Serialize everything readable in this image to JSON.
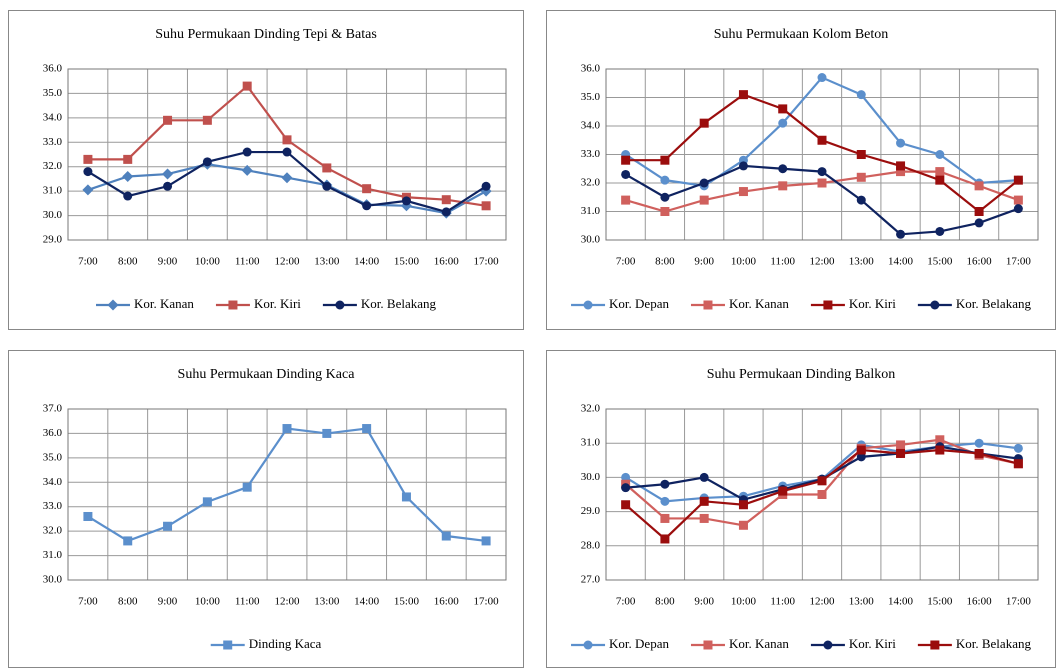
{
  "chart_data": [
    {
      "type": "line",
      "title": "Suhu Permukaan Dinding Tepi & Batas",
      "categories": [
        "7:00",
        "8:00",
        "9:00",
        "10:00",
        "11:00",
        "12:00",
        "13:00",
        "14:00",
        "15:00",
        "16:00",
        "17:00"
      ],
      "ylim": [
        29,
        36
      ],
      "yticks": [
        {
          "value": 29,
          "label": "29.0"
        },
        {
          "value": 30,
          "label": "30.0"
        },
        {
          "value": 31,
          "label": "31.0"
        },
        {
          "value": 32,
          "label": "32.0"
        },
        {
          "value": 33,
          "label": "33.0"
        },
        {
          "value": 34,
          "label": "34.0"
        },
        {
          "value": 35,
          "label": "35.0"
        },
        {
          "value": 36,
          "label": "36.0"
        }
      ],
      "grid": true,
      "legend": "bottom",
      "series": [
        {
          "name": "Kor. Kanan",
          "color": "#4f81bd",
          "marker": "diamond",
          "values": [
            31.05,
            31.6,
            31.7,
            32.1,
            31.85,
            31.55,
            31.25,
            30.45,
            30.4,
            30.1,
            31.0
          ]
        },
        {
          "name": "Kor. Kiri",
          "color": "#c0504d",
          "marker": "square",
          "values": [
            32.3,
            32.3,
            33.9,
            33.9,
            35.3,
            33.1,
            31.95,
            31.1,
            30.75,
            30.65,
            30.4
          ]
        },
        {
          "name": "Kor. Belakang",
          "color": "#0f2360",
          "marker": "circle",
          "values": [
            31.8,
            30.8,
            31.2,
            32.2,
            32.6,
            32.6,
            31.2,
            30.4,
            30.6,
            30.15,
            31.2
          ]
        }
      ]
    },
    {
      "type": "line",
      "title": "Suhu Permukaan Kolom Beton",
      "categories": [
        "7:00",
        "8:00",
        "9:00",
        "10:00",
        "11:00",
        "12:00",
        "13:00",
        "14:00",
        "15:00",
        "16:00",
        "17:00"
      ],
      "ylim": [
        30,
        36
      ],
      "yticks": [
        {
          "value": 30,
          "label": "30.0"
        },
        {
          "value": 31,
          "label": "31.0"
        },
        {
          "value": 32,
          "label": "32.0"
        },
        {
          "value": 33,
          "label": "33.0"
        },
        {
          "value": 34,
          "label": "34.0"
        },
        {
          "value": 35,
          "label": "35.0"
        },
        {
          "value": 36,
          "label": "36.0"
        }
      ],
      "grid": true,
      "legend": "bottom",
      "series": [
        {
          "name": "Kor. Depan",
          "color": "#5b8fcc",
          "marker": "circle",
          "values": [
            33.0,
            32.1,
            31.9,
            32.8,
            34.1,
            35.7,
            35.1,
            33.4,
            33.0,
            32.0,
            32.1
          ]
        },
        {
          "name": "Kor. Kanan",
          "color": "#d0605d",
          "marker": "square",
          "values": [
            31.4,
            31.0,
            31.4,
            31.7,
            31.9,
            32.0,
            32.2,
            32.4,
            32.4,
            31.9,
            31.4
          ]
        },
        {
          "name": "Kor. Kiri",
          "color": "#9b0d0d",
          "marker": "square",
          "values": [
            32.8,
            32.8,
            34.1,
            35.1,
            34.6,
            33.5,
            33.0,
            32.6,
            32.1,
            31.0,
            32.1
          ]
        },
        {
          "name": "Kor. Belakang",
          "color": "#0f2360",
          "marker": "circle",
          "values": [
            32.3,
            31.5,
            32.0,
            32.6,
            32.5,
            32.4,
            31.4,
            30.2,
            30.3,
            30.6,
            31.1
          ]
        }
      ]
    },
    {
      "type": "line",
      "title": "Suhu Permukaan Dinding Kaca",
      "categories": [
        "7:00",
        "8:00",
        "9:00",
        "10:00",
        "11:00",
        "12:00",
        "13:00",
        "14:00",
        "15:00",
        "16:00",
        "17:00"
      ],
      "ylim": [
        30,
        37
      ],
      "yticks": [
        {
          "value": 30,
          "label": "30.0"
        },
        {
          "value": 31,
          "label": "31.0"
        },
        {
          "value": 32,
          "label": "32.0"
        },
        {
          "value": 33,
          "label": "33.0"
        },
        {
          "value": 34,
          "label": "34.0"
        },
        {
          "value": 35,
          "label": "35.0"
        },
        {
          "value": 36,
          "label": "36.0"
        },
        {
          "value": 37,
          "label": "37.0"
        }
      ],
      "grid": true,
      "legend": "bottom",
      "series": [
        {
          "name": "Dinding Kaca",
          "color": "#5b8fcc",
          "marker": "square",
          "values": [
            32.6,
            31.6,
            32.2,
            33.2,
            33.8,
            36.2,
            36.0,
            36.2,
            33.4,
            31.8,
            31.6
          ]
        }
      ]
    },
    {
      "type": "line",
      "title": "Suhu Permukaan Dinding Balkon",
      "categories": [
        "7:00",
        "8:00",
        "9:00",
        "10:00",
        "11:00",
        "12:00",
        "13:00",
        "14:00",
        "15:00",
        "16:00",
        "17:00"
      ],
      "ylim": [
        27,
        32
      ],
      "yticks": [
        {
          "value": 27,
          "label": "27.0"
        },
        {
          "value": 28,
          "label": "28.0"
        },
        {
          "value": 29,
          "label": "29.0"
        },
        {
          "value": 30,
          "label": "30.0"
        },
        {
          "value": 31,
          "label": "31.0"
        },
        {
          "value": 32,
          "label": "32.0"
        }
      ],
      "grid": true,
      "legend": "bottom",
      "series": [
        {
          "name": "Kor. Depan",
          "color": "#5b8fcc",
          "marker": "circle",
          "values": [
            30.0,
            29.3,
            29.4,
            29.45,
            29.75,
            29.95,
            30.95,
            30.75,
            30.9,
            31.0,
            30.85
          ]
        },
        {
          "name": "Kor. Kanan",
          "color": "#d0605d",
          "marker": "square",
          "values": [
            29.8,
            28.8,
            28.8,
            28.6,
            29.5,
            29.5,
            30.85,
            30.95,
            31.1,
            30.65,
            30.4
          ]
        },
        {
          "name": "Kor. Kiri",
          "color": "#0f2360",
          "marker": "circle",
          "values": [
            29.7,
            29.8,
            30.0,
            29.35,
            29.65,
            29.95,
            30.6,
            30.7,
            30.9,
            30.7,
            30.55
          ]
        },
        {
          "name": "Kor. Belakang",
          "color": "#9b0d0d",
          "marker": "square",
          "values": [
            29.2,
            28.2,
            29.3,
            29.2,
            29.6,
            29.9,
            30.8,
            30.7,
            30.8,
            30.7,
            30.4
          ]
        }
      ]
    }
  ]
}
